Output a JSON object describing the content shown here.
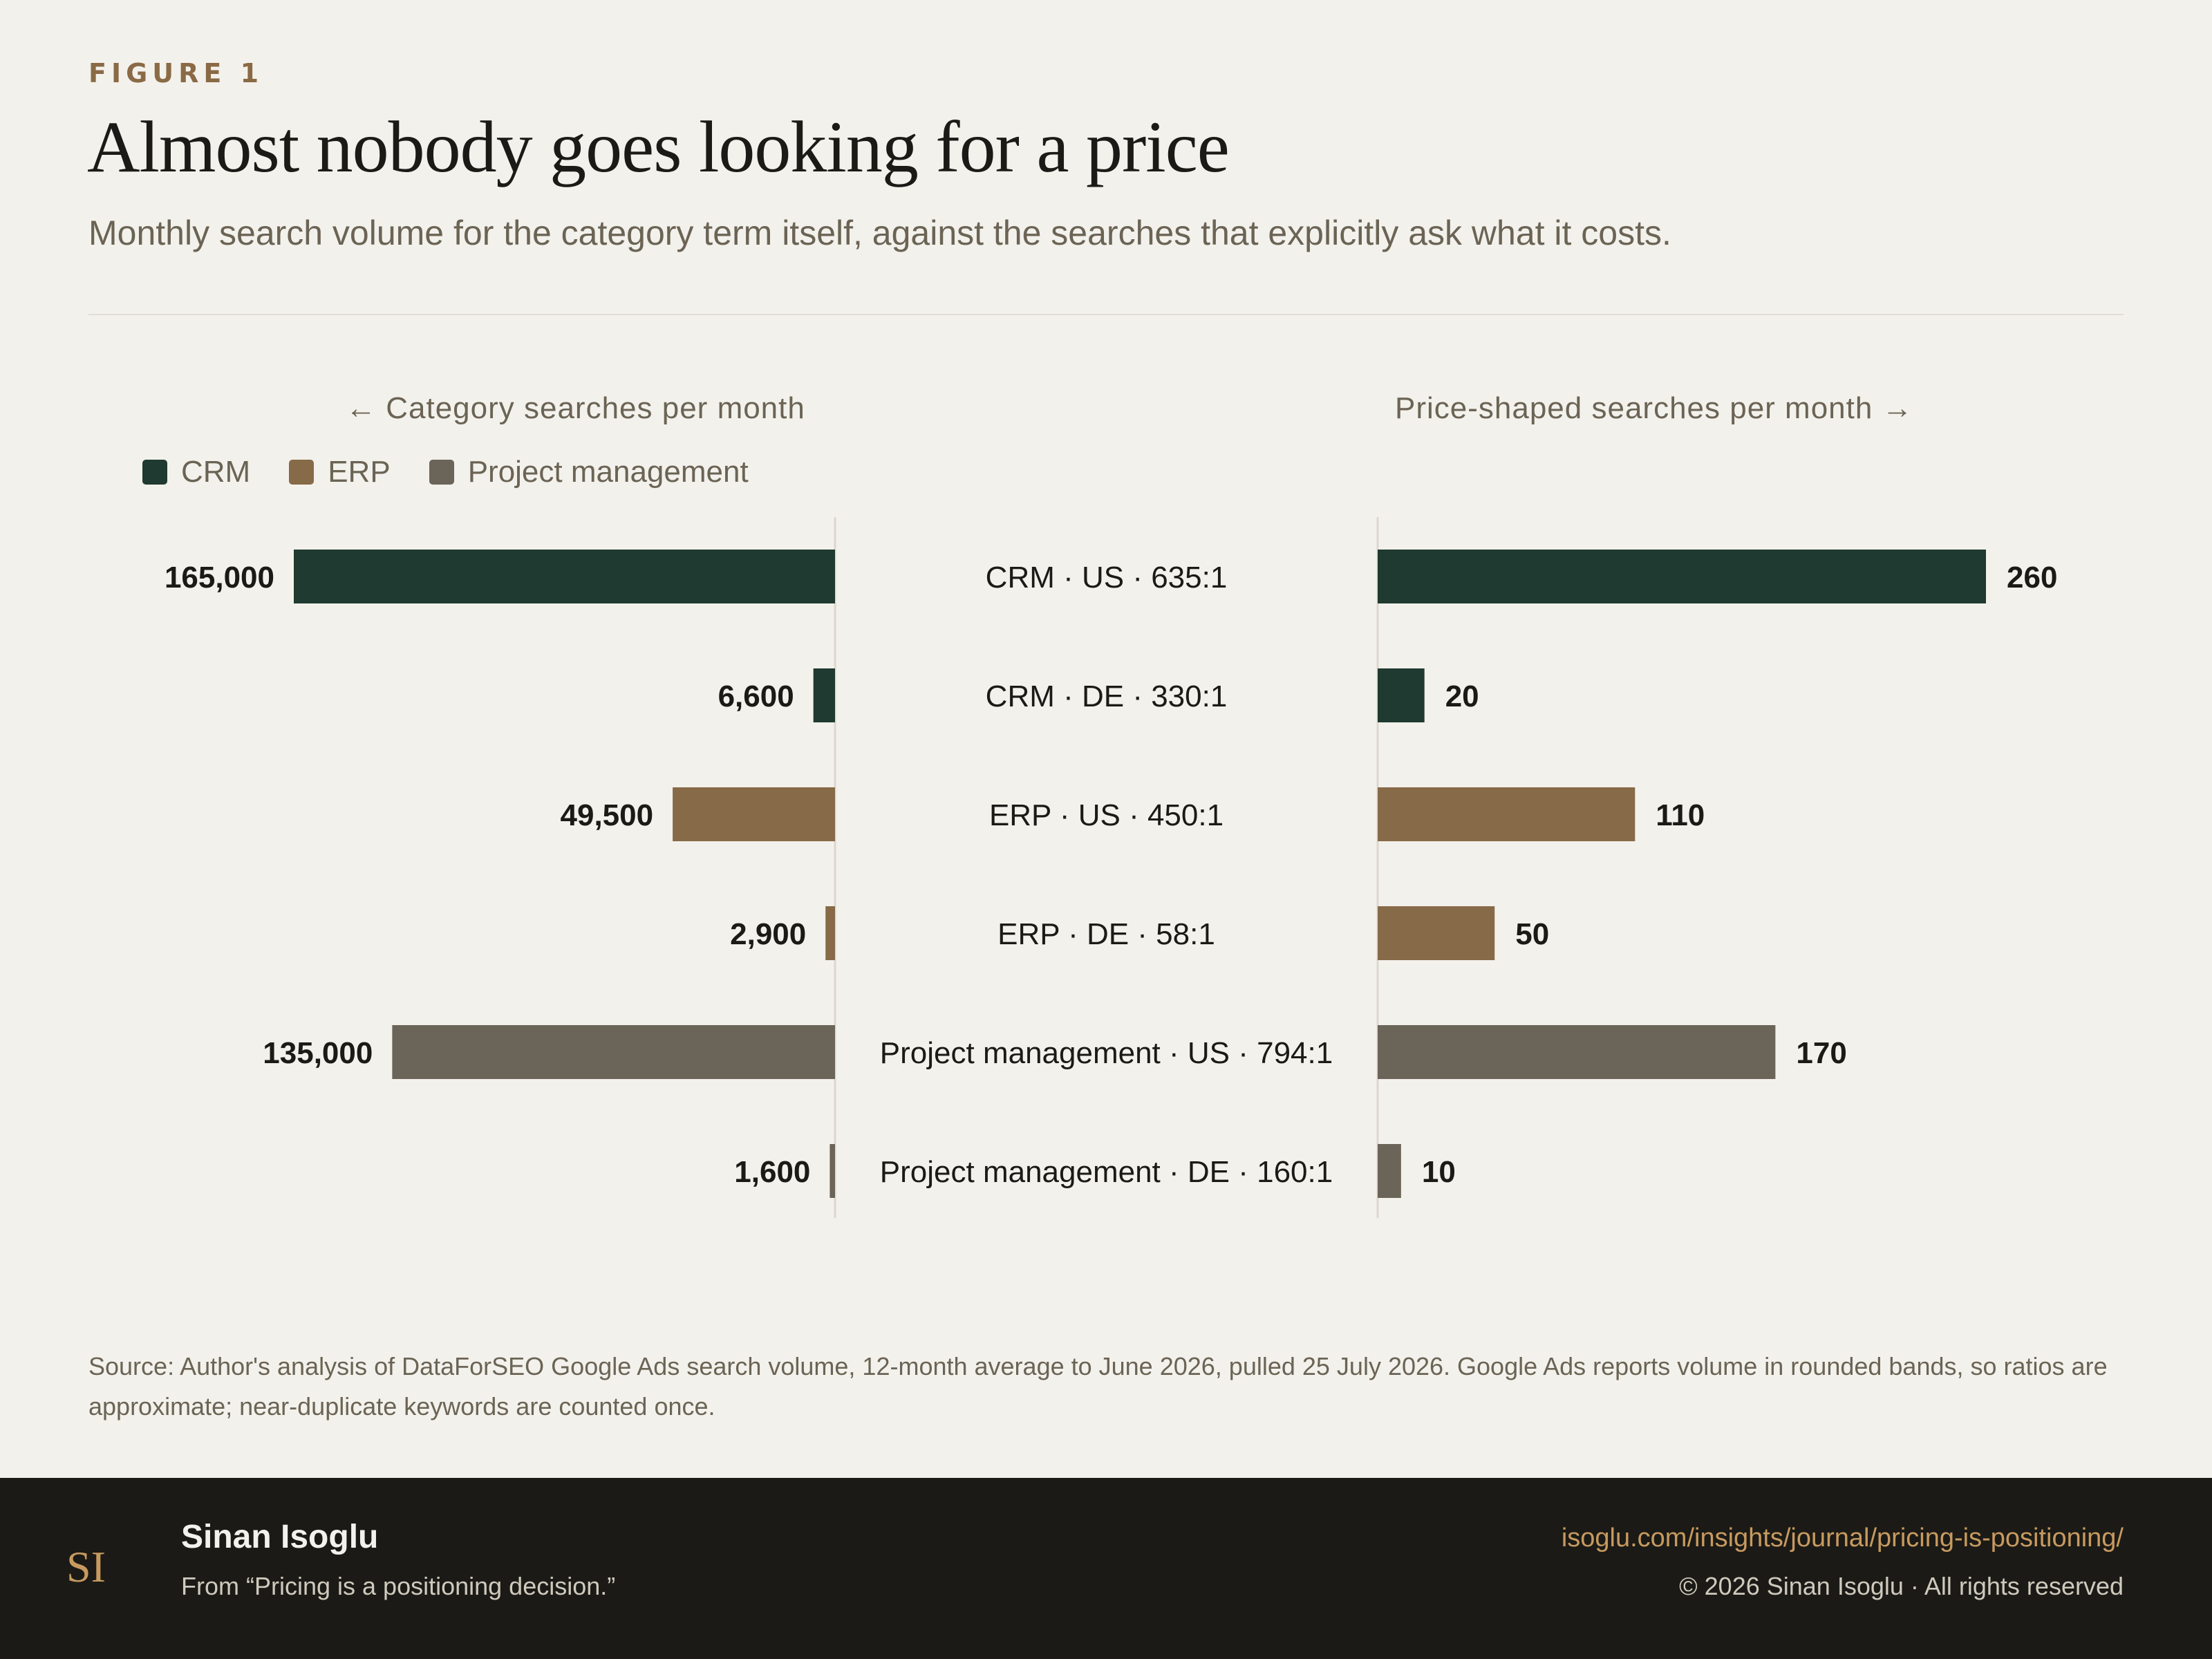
{
  "header": {
    "eyebrow": "FIGURE 1",
    "title": "Almost nobody goes looking for a price",
    "subtitle": "Monthly search volume for the category term itself, against the searches that explicitly ask what it costs."
  },
  "axes": {
    "left_heading": "← Category searches per month",
    "right_heading": "Price-shaped searches per month →"
  },
  "legend": [
    {
      "label": "CRM",
      "color": "#1f3a30"
    },
    {
      "label": "ERP",
      "color": "#876a47"
    },
    {
      "label": "Project management",
      "color": "#6b6458"
    }
  ],
  "chart_data": {
    "type": "bar",
    "layout": "diverging (butterfly)",
    "categories": [
      "CRM · US · 635:1",
      "CRM · DE · 330:1",
      "ERP · US · 450:1",
      "ERP · DE · 58:1",
      "Project management · US · 794:1",
      "Project management · DE · 160:1"
    ],
    "groups": [
      "CRM",
      "CRM",
      "ERP",
      "ERP",
      "Project management",
      "Project management"
    ],
    "series": [
      {
        "name": "Category searches per month",
        "side": "left",
        "values": [
          165000,
          6600,
          49500,
          2900,
          135000,
          1600
        ],
        "labels": [
          "165,000",
          "6,600",
          "49,500",
          "2,900",
          "135,000",
          "1,600"
        ]
      },
      {
        "name": "Price-shaped searches per month",
        "side": "right",
        "values": [
          260,
          20,
          110,
          50,
          170,
          10
        ],
        "labels": [
          "260",
          "20",
          "110",
          "50",
          "170",
          "10"
        ]
      }
    ],
    "colors": {
      "CRM": "#1f3a30",
      "ERP": "#876a47",
      "Project management": "#6b6458"
    },
    "left_max": 165000,
    "right_max": 260,
    "grid": false,
    "legend_position": "top-left"
  },
  "source": "Source: Author's analysis of DataForSEO Google Ads search volume, 12-month average to June 2026, pulled 25 July 2026. Google Ads reports volume in rounded bands, so ratios are approximate; near-duplicate keywords are counted once.",
  "footer": {
    "logo_text": "SI",
    "author": "Sinan Isoglu",
    "from": "From “Pricing is a positioning decision.”",
    "url": "isoglu.com/insights/journal/pricing-is-positioning/",
    "copyright": "© 2026 Sinan Isoglu · All rights reserved"
  }
}
